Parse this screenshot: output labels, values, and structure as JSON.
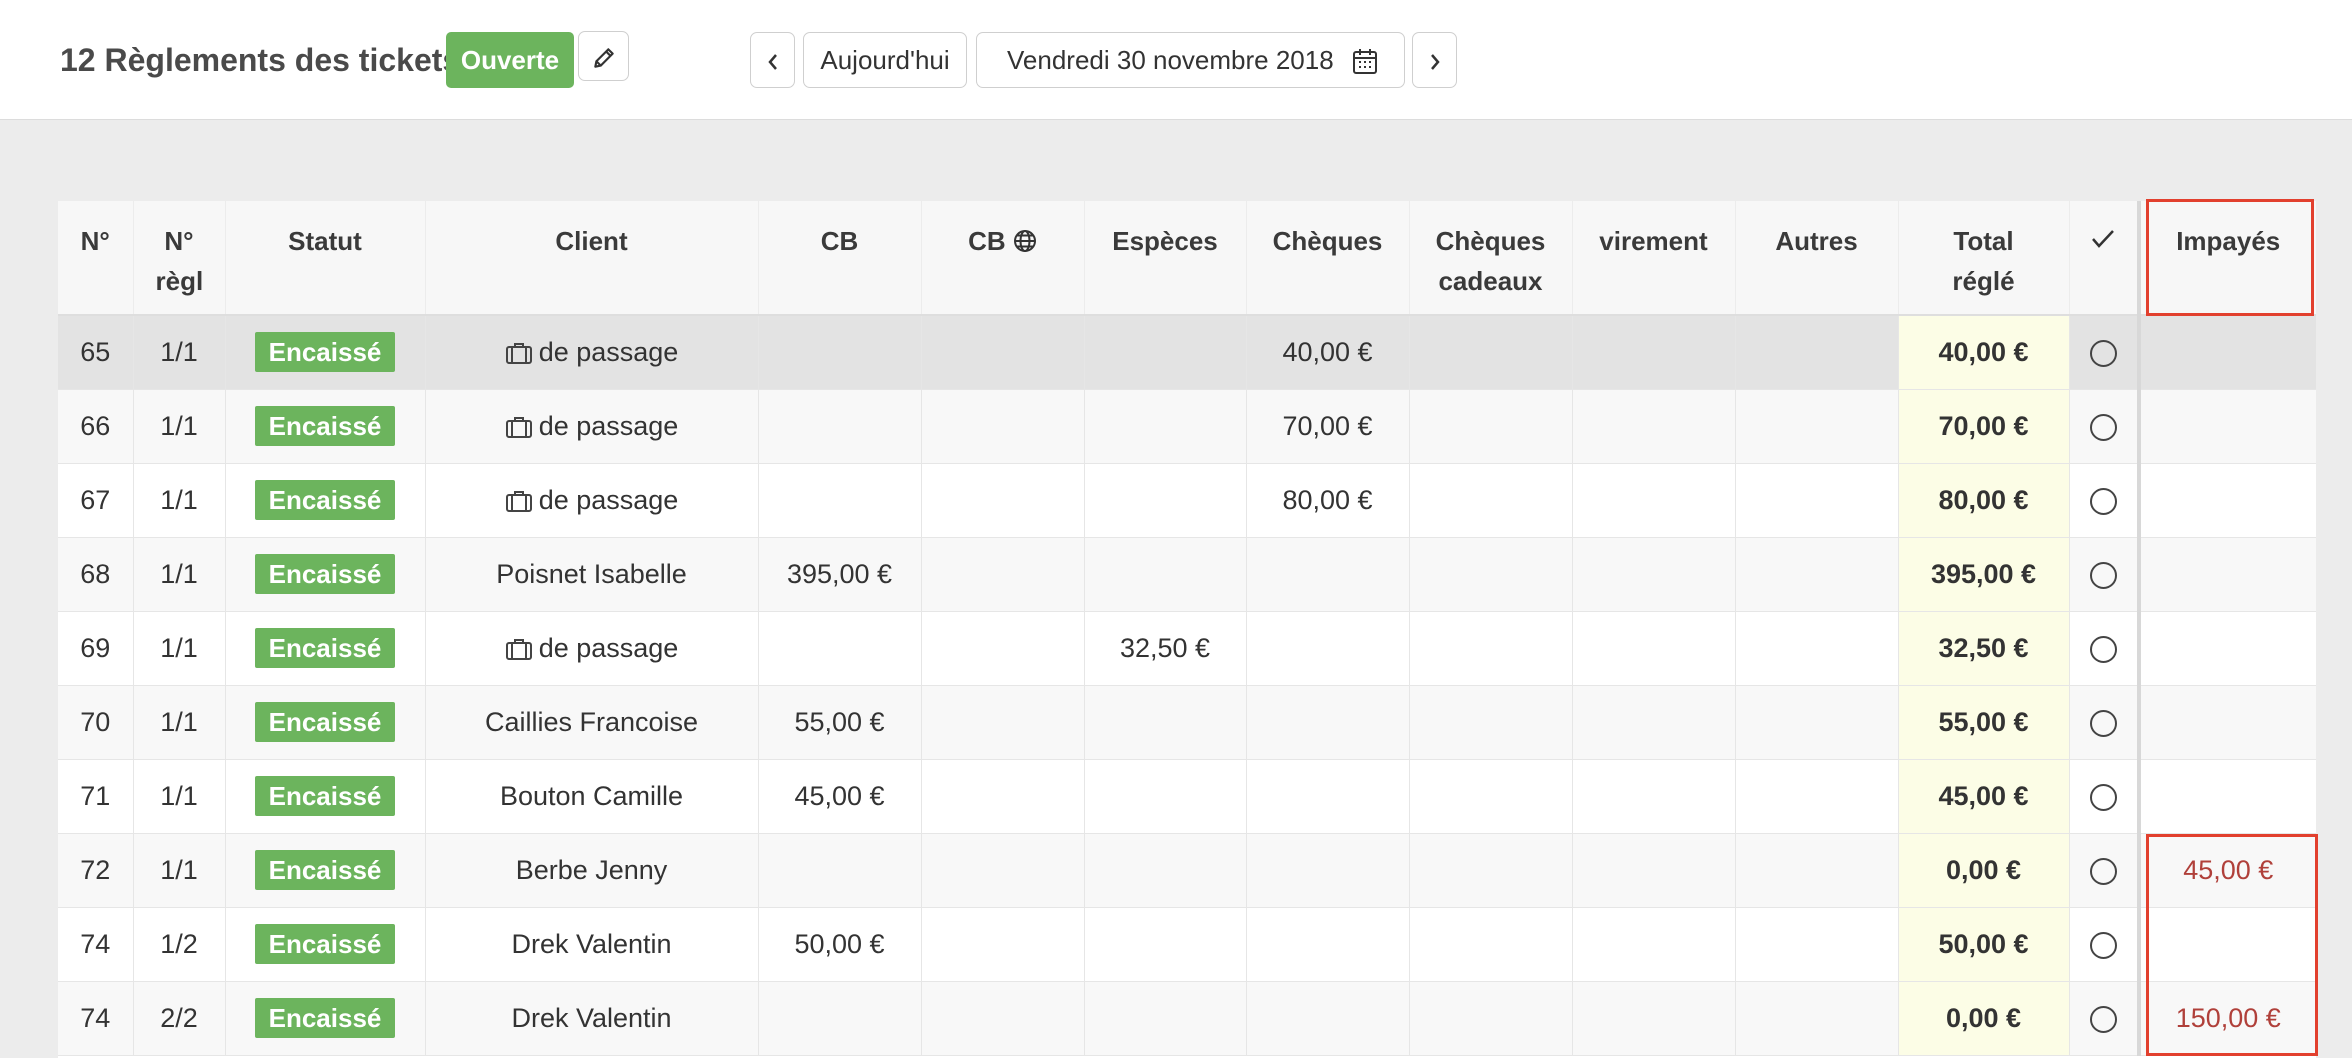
{
  "header": {
    "title": "12 Règlements des tickets",
    "status": "Ouverte",
    "today_label": "Aujourd'hui",
    "date_label": "Vendredi 30 novembre 2018"
  },
  "table": {
    "columns": [
      "N°",
      "N° règl",
      "Statut",
      "Client",
      "CB",
      "CB",
      "Espèces",
      "Chèques",
      "Chèques cadeaux",
      "virement",
      "Autres",
      "Total réglé",
      "",
      "Impayés"
    ],
    "rows": [
      {
        "n": "65",
        "regl": "1/1",
        "statut": "Encaissé",
        "client": "de passage",
        "passage": true,
        "cb": "",
        "cbweb": "",
        "especes": "",
        "cheques": "40,00 €",
        "cadeaux": "",
        "virement": "",
        "autres": "",
        "total": "40,00 €",
        "impayes": ""
      },
      {
        "n": "66",
        "regl": "1/1",
        "statut": "Encaissé",
        "client": "de passage",
        "passage": true,
        "cb": "",
        "cbweb": "",
        "especes": "",
        "cheques": "70,00 €",
        "cadeaux": "",
        "virement": "",
        "autres": "",
        "total": "70,00 €",
        "impayes": ""
      },
      {
        "n": "67",
        "regl": "1/1",
        "statut": "Encaissé",
        "client": "de passage",
        "passage": true,
        "cb": "",
        "cbweb": "",
        "especes": "",
        "cheques": "80,00 €",
        "cadeaux": "",
        "virement": "",
        "autres": "",
        "total": "80,00 €",
        "impayes": ""
      },
      {
        "n": "68",
        "regl": "1/1",
        "statut": "Encaissé",
        "client": "Poisnet Isabelle",
        "passage": false,
        "cb": "395,00 €",
        "cbweb": "",
        "especes": "",
        "cheques": "",
        "cadeaux": "",
        "virement": "",
        "autres": "",
        "total": "395,00 €",
        "impayes": ""
      },
      {
        "n": "69",
        "regl": "1/1",
        "statut": "Encaissé",
        "client": "de passage",
        "passage": true,
        "cb": "",
        "cbweb": "",
        "especes": "32,50 €",
        "cheques": "",
        "cadeaux": "",
        "virement": "",
        "autres": "",
        "total": "32,50 €",
        "impayes": ""
      },
      {
        "n": "70",
        "regl": "1/1",
        "statut": "Encaissé",
        "client": "Caillies Francoise",
        "passage": false,
        "cb": "55,00 €",
        "cbweb": "",
        "especes": "",
        "cheques": "",
        "cadeaux": "",
        "virement": "",
        "autres": "",
        "total": "55,00 €",
        "impayes": ""
      },
      {
        "n": "71",
        "regl": "1/1",
        "statut": "Encaissé",
        "client": "Bouton Camille",
        "passage": false,
        "cb": "45,00 €",
        "cbweb": "",
        "especes": "",
        "cheques": "",
        "cadeaux": "",
        "virement": "",
        "autres": "",
        "total": "45,00 €",
        "impayes": ""
      },
      {
        "n": "72",
        "regl": "1/1",
        "statut": "Encaissé",
        "client": "Berbe Jenny",
        "passage": false,
        "cb": "",
        "cbweb": "",
        "especes": "",
        "cheques": "",
        "cadeaux": "",
        "virement": "",
        "autres": "",
        "total": "0,00 €",
        "impayes": "45,00 €"
      },
      {
        "n": "74",
        "regl": "1/2",
        "statut": "Encaissé",
        "client": "Drek Valentin",
        "passage": false,
        "cb": "50,00 €",
        "cbweb": "",
        "especes": "",
        "cheques": "",
        "cadeaux": "",
        "virement": "",
        "autres": "",
        "total": "50,00 €",
        "impayes": ""
      },
      {
        "n": "74",
        "regl": "2/2",
        "statut": "Encaissé",
        "client": "Drek Valentin",
        "passage": false,
        "cb": "",
        "cbweb": "",
        "especes": "",
        "cheques": "",
        "cadeaux": "",
        "virement": "",
        "autres": "",
        "total": "0,00 €",
        "impayes": "150,00 €"
      }
    ]
  },
  "icons": {
    "edit": "pencil-icon",
    "prev": "chevron-left-icon",
    "next": "chevron-right-icon",
    "calendar": "calendar-icon",
    "globe": "globe-icon",
    "check": "check-icon",
    "passage": "briefcase-icon",
    "status": "radio-circle-icon"
  },
  "colors": {
    "accent_green": "#6cb45d",
    "unpaid_red": "#b0403a",
    "highlight_box": "#e2402e",
    "total_column_bg": "#fcfde6"
  }
}
